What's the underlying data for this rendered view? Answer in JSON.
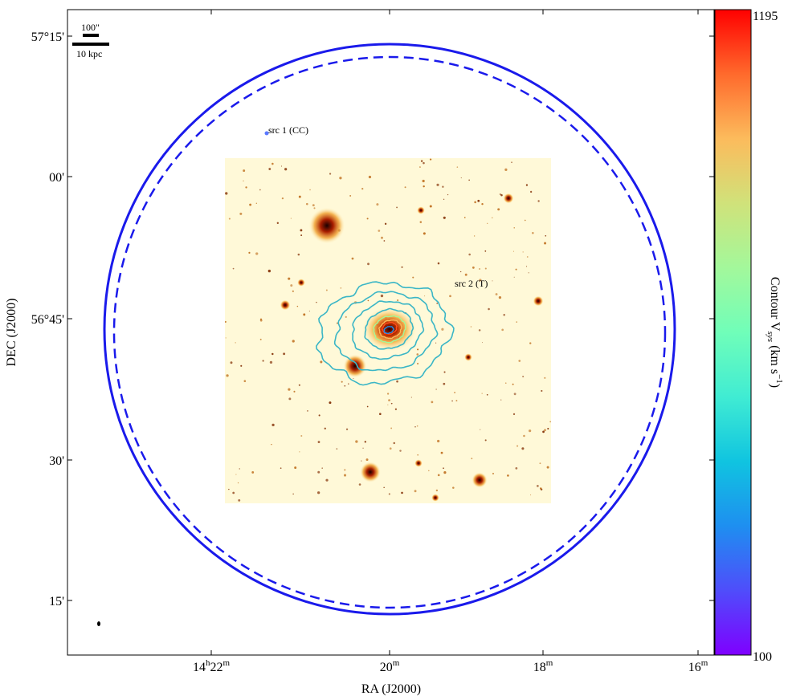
{
  "figure": {
    "xlabel": "RA (J2000)",
    "ylabel": "DEC (J2000)",
    "x_ticks": [
      {
        "label": "14",
        "sup1": "h",
        "mid": "22",
        "sup2": "m"
      },
      {
        "label": "20",
        "sup2": "m"
      },
      {
        "label": "18",
        "sup2": "m"
      },
      {
        "label": "16",
        "sup2": "m"
      }
    ],
    "y_ticks": [
      "57°15'",
      "00'",
      "56°45'",
      "30'",
      "15'"
    ],
    "scalebar": {
      "top_label": "100\"",
      "bottom_label": "10 kpc"
    },
    "annotations": {
      "src1": "src 1 (CC)",
      "src2": "src 2 (T)"
    },
    "colorbar": {
      "title_prefix": "Contour V",
      "title_sub": "sys",
      "title_suffix": " (km s",
      "title_sup": "−1",
      "title_end": ")",
      "max": "1195",
      "min": "100",
      "colors": [
        "#7f00ff",
        "#4f4dfb",
        "#1e8ff0",
        "#10c4e0",
        "#40ecd3",
        "#70feb9",
        "#a3f89b",
        "#d0e27a",
        "#fcbb5c",
        "#ff8a3c",
        "#ff4e1e",
        "#ff0000"
      ]
    },
    "circle_color": "#1a1aeb",
    "contour_color": "#3bb6c6"
  }
}
